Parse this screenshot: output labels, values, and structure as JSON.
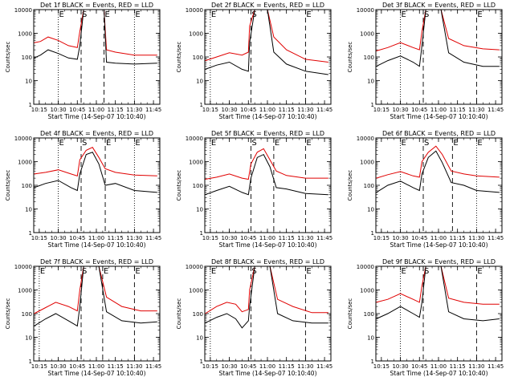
{
  "colors": {
    "events": "#000000",
    "lld": "#e00000",
    "axes": "#000000",
    "background": "#ffffff"
  },
  "common": {
    "xlabel": "Start Time (14-Sep-07 10:10:40)",
    "ylabel": "Counts/sec",
    "x_ticks": [
      "10:15",
      "10:30",
      "10:45",
      "11:00",
      "11:15",
      "11:30",
      "11:45"
    ],
    "y_ticks": [
      "1",
      "10",
      "100",
      "1000",
      "10000"
    ],
    "marker_labels": [
      "E",
      "S",
      "E"
    ]
  },
  "chart_data": [
    {
      "type": "line",
      "title": "Det 1f BLACK = Events, RED = LLD",
      "x_range": [
        "10:10:40",
        "11:50:00"
      ],
      "ylim": [
        1,
        10000
      ],
      "yscale": "log",
      "markers": [
        {
          "label": "E",
          "time": "10:30",
          "style": "dotted"
        },
        {
          "label": "S",
          "time": "10:48",
          "style": "dashed"
        },
        {
          "label": "E",
          "time": "11:06",
          "style": "dashed"
        },
        {
          "label": "E",
          "time": "11:30",
          "style": "dotted"
        }
      ],
      "series": [
        {
          "x": [
            "10:11",
            "10:16",
            "10:22",
            "10:30",
            "10:38",
            "10:45",
            "10:47",
            "10:50",
            "11:00",
            "11:06",
            "11:08",
            "11:15",
            "11:30",
            "11:48"
          ],
          "values": [
            400,
            450,
            700,
            500,
            300,
            250,
            1200,
            10000,
            10000,
            10000,
            200,
            160,
            120,
            120
          ]
        },
        {
          "x": [
            "10:11",
            "10:16",
            "10:22",
            "10:30",
            "10:38",
            "10:45",
            "10:47",
            "10:50",
            "11:00",
            "11:06",
            "11:08",
            "11:15",
            "11:30",
            "11:48"
          ],
          "values": [
            90,
            120,
            200,
            140,
            90,
            80,
            300,
            10000,
            10000,
            10000,
            60,
            55,
            50,
            55
          ]
        }
      ]
    },
    {
      "type": "line",
      "title": "Det 2f BLACK = Events, RED = LLD",
      "x_range": [
        "10:10:40",
        "11:50:00"
      ],
      "ylim": [
        1,
        10000
      ],
      "yscale": "log",
      "markers": [
        {
          "label": "E",
          "time": "10:15",
          "style": "dotted"
        },
        {
          "label": "S",
          "time": "10:47",
          "style": "dashed"
        },
        {
          "label": "E",
          "time": "11:30",
          "style": "dashed"
        }
      ],
      "series": [
        {
          "x": [
            "10:11",
            "10:20",
            "10:30",
            "10:40",
            "10:45",
            "10:46",
            "10:50",
            "11:00",
            "11:05",
            "11:15",
            "11:30",
            "11:48"
          ],
          "values": [
            70,
            100,
            150,
            120,
            160,
            2000,
            10000,
            10000,
            700,
            200,
            80,
            60
          ]
        },
        {
          "x": [
            "10:11",
            "10:20",
            "10:30",
            "10:40",
            "10:45",
            "10:46",
            "10:50",
            "11:00",
            "11:05",
            "11:15",
            "11:30",
            "11:48"
          ],
          "values": [
            30,
            45,
            60,
            30,
            25,
            400,
            10000,
            10000,
            160,
            50,
            25,
            18
          ]
        }
      ]
    },
    {
      "type": "line",
      "title": "Det 3f BLACK = Events, RED = LLD",
      "x_range": [
        "10:10:40",
        "11:50:00"
      ],
      "ylim": [
        1,
        10000
      ],
      "yscale": "log",
      "markers": [
        {
          "label": "E",
          "time": "10:30",
          "style": "dotted"
        },
        {
          "label": "S",
          "time": "10:48",
          "style": "dashed"
        },
        {
          "label": "E",
          "time": "11:30",
          "style": "dashed"
        }
      ],
      "series": [
        {
          "x": [
            "10:11",
            "10:20",
            "10:30",
            "10:40",
            "10:45",
            "10:47",
            "10:50",
            "11:02",
            "11:08",
            "11:20",
            "11:35",
            "11:48"
          ],
          "values": [
            180,
            250,
            400,
            250,
            200,
            1200,
            10000,
            10000,
            600,
            300,
            220,
            200
          ]
        },
        {
          "x": [
            "10:11",
            "10:20",
            "10:30",
            "10:40",
            "10:45",
            "10:47",
            "10:50",
            "11:02",
            "11:08",
            "11:20",
            "11:35",
            "11:48"
          ],
          "values": [
            40,
            70,
            110,
            60,
            40,
            300,
            10000,
            10000,
            150,
            60,
            40,
            40
          ]
        }
      ]
    },
    {
      "type": "line",
      "title": "Det 4f BLACK = Events, RED = LLD",
      "x_range": [
        "10:10:40",
        "11:50:00"
      ],
      "ylim": [
        1,
        10000
      ],
      "yscale": "log",
      "markers": [
        {
          "label": "E",
          "time": "10:30",
          "style": "dotted"
        },
        {
          "label": "S",
          "time": "10:48",
          "style": "dashed"
        },
        {
          "label": "E",
          "time": "11:07",
          "style": "dashed"
        },
        {
          "label": "E",
          "time": "11:30",
          "style": "dotted"
        }
      ],
      "series": [
        {
          "x": [
            "10:11",
            "10:20",
            "10:30",
            "10:40",
            "10:45",
            "10:47",
            "10:52",
            "10:57",
            "11:02",
            "11:07",
            "11:15",
            "11:30",
            "11:48"
          ],
          "values": [
            300,
            350,
            450,
            300,
            250,
            1200,
            3000,
            4000,
            1500,
            500,
            350,
            270,
            250
          ]
        },
        {
          "x": [
            "10:11",
            "10:20",
            "10:30",
            "10:40",
            "10:45",
            "10:47",
            "10:52",
            "10:57",
            "11:02",
            "11:07",
            "11:15",
            "11:30",
            "11:48"
          ],
          "values": [
            80,
            120,
            160,
            80,
            60,
            300,
            2000,
            2500,
            800,
            100,
            120,
            60,
            50
          ]
        }
      ]
    },
    {
      "type": "line",
      "title": "Det 5f BLACK = Events, RED = LLD",
      "x_range": [
        "10:10:40",
        "11:50:00"
      ],
      "ylim": [
        1,
        10000
      ],
      "yscale": "log",
      "markers": [
        {
          "label": "E",
          "time": "10:15",
          "style": "dotted"
        },
        {
          "label": "S",
          "time": "10:47",
          "style": "dashed"
        },
        {
          "label": "E",
          "time": "11:05",
          "style": "dashed"
        },
        {
          "label": "E",
          "time": "11:30",
          "style": "dashed"
        }
      ],
      "series": [
        {
          "x": [
            "10:11",
            "10:20",
            "10:30",
            "10:40",
            "10:45",
            "10:47",
            "10:52",
            "10:57",
            "11:02",
            "11:07",
            "11:15",
            "11:30",
            "11:48"
          ],
          "values": [
            180,
            220,
            300,
            200,
            180,
            800,
            2500,
            3500,
            1200,
            400,
            260,
            200,
            200
          ]
        },
        {
          "x": [
            "10:11",
            "10:20",
            "10:30",
            "10:40",
            "10:45",
            "10:47",
            "10:52",
            "10:57",
            "11:02",
            "11:07",
            "11:15",
            "11:30",
            "11:48"
          ],
          "values": [
            40,
            60,
            90,
            50,
            40,
            200,
            1500,
            2000,
            600,
            80,
            70,
            45,
            40
          ]
        }
      ]
    },
    {
      "type": "line",
      "title": "Det 6f BLACK = Events, RED = LLD",
      "x_range": [
        "10:10:40",
        "11:50:00"
      ],
      "ylim": [
        1,
        10000
      ],
      "yscale": "log",
      "markers": [
        {
          "label": "E",
          "time": "10:30",
          "style": "dotted"
        },
        {
          "label": "S",
          "time": "10:48",
          "style": "dashed"
        },
        {
          "label": "E",
          "time": "11:11",
          "style": "dashed"
        },
        {
          "label": "E",
          "time": "11:30",
          "style": "dotted"
        }
      ],
      "series": [
        {
          "x": [
            "10:11",
            "10:20",
            "10:30",
            "10:40",
            "10:45",
            "10:47",
            "10:52",
            "10:58",
            "11:03",
            "11:10",
            "11:20",
            "11:30",
            "11:48"
          ],
          "values": [
            200,
            280,
            380,
            250,
            220,
            1000,
            2500,
            4500,
            2000,
            400,
            300,
            250,
            220
          ]
        },
        {
          "x": [
            "10:11",
            "10:20",
            "10:30",
            "10:40",
            "10:45",
            "10:47",
            "10:52",
            "10:58",
            "11:03",
            "11:10",
            "11:20",
            "11:30",
            "11:48"
          ],
          "values": [
            50,
            100,
            150,
            80,
            60,
            300,
            1500,
            2800,
            900,
            130,
            100,
            60,
            50
          ]
        }
      ]
    },
    {
      "type": "line",
      "title": "Det 7f BLACK = Events, RED = LLD",
      "x_range": [
        "10:10:40",
        "11:50:00"
      ],
      "ylim": [
        1,
        10000
      ],
      "yscale": "log",
      "markers": [
        {
          "label": "E",
          "time": "10:15",
          "style": "dotted"
        },
        {
          "label": "S",
          "time": "10:48",
          "style": "dashed"
        },
        {
          "label": "E",
          "time": "11:05",
          "style": "dashed"
        },
        {
          "label": "E",
          "time": "11:30",
          "style": "dashed"
        }
      ],
      "series": [
        {
          "x": [
            "10:11",
            "10:20",
            "10:28",
            "10:38",
            "10:45",
            "10:47",
            "10:50",
            "11:02",
            "11:08",
            "11:20",
            "11:35",
            "11:48"
          ],
          "values": [
            100,
            180,
            300,
            200,
            130,
            1000,
            10000,
            10000,
            500,
            200,
            130,
            130
          ]
        },
        {
          "x": [
            "10:11",
            "10:20",
            "10:28",
            "10:38",
            "10:45",
            "10:47",
            "10:50",
            "11:02",
            "11:08",
            "11:20",
            "11:35",
            "11:48"
          ],
          "values": [
            30,
            60,
            100,
            50,
            30,
            200,
            10000,
            10000,
            120,
            50,
            40,
            45
          ]
        }
      ]
    },
    {
      "type": "line",
      "title": "Det 8f BLACK = Events, RED = LLD",
      "x_range": [
        "10:10:40",
        "11:50:00"
      ],
      "ylim": [
        1,
        10000
      ],
      "yscale": "log",
      "markers": [
        {
          "label": "E",
          "time": "10:15",
          "style": "dotted"
        },
        {
          "label": "S",
          "time": "10:47",
          "style": "dashed"
        },
        {
          "label": "E",
          "time": "11:30",
          "style": "dashed"
        }
      ],
      "series": [
        {
          "x": [
            "10:11",
            "10:20",
            "10:28",
            "10:35",
            "10:40",
            "10:45",
            "10:46",
            "10:50",
            "11:02",
            "11:08",
            "11:20",
            "11:35",
            "11:48"
          ],
          "values": [
            100,
            200,
            300,
            250,
            120,
            150,
            1000,
            10000,
            10000,
            400,
            200,
            110,
            110
          ]
        },
        {
          "x": [
            "10:11",
            "10:20",
            "10:28",
            "10:35",
            "10:40",
            "10:45",
            "10:46",
            "10:50",
            "11:02",
            "11:08",
            "11:20",
            "11:35",
            "11:48"
          ],
          "values": [
            40,
            70,
            100,
            60,
            25,
            50,
            200,
            10000,
            10000,
            100,
            50,
            40,
            40
          ]
        }
      ]
    },
    {
      "type": "line",
      "title": "Det 9f BLACK = Events, RED = LLD",
      "x_range": [
        "10:10:40",
        "11:50:00"
      ],
      "ylim": [
        1,
        10000
      ],
      "yscale": "log",
      "markers": [
        {
          "label": "E",
          "time": "10:30",
          "style": "dotted"
        },
        {
          "label": "S",
          "time": "10:48",
          "style": "dashed"
        },
        {
          "label": "E",
          "time": "11:30",
          "style": "dashed"
        }
      ],
      "series": [
        {
          "x": [
            "10:11",
            "10:20",
            "10:30",
            "10:40",
            "10:45",
            "10:47",
            "10:50",
            "11:02",
            "11:08",
            "11:20",
            "11:35",
            "11:48"
          ],
          "values": [
            300,
            400,
            700,
            400,
            300,
            1500,
            10000,
            10000,
            450,
            300,
            250,
            250
          ]
        },
        {
          "x": [
            "10:11",
            "10:20",
            "10:30",
            "10:40",
            "10:45",
            "10:47",
            "10:50",
            "11:02",
            "11:08",
            "11:20",
            "11:35",
            "11:48"
          ],
          "values": [
            60,
            100,
            200,
            100,
            70,
            300,
            10000,
            10000,
            120,
            60,
            50,
            60
          ]
        }
      ]
    }
  ]
}
